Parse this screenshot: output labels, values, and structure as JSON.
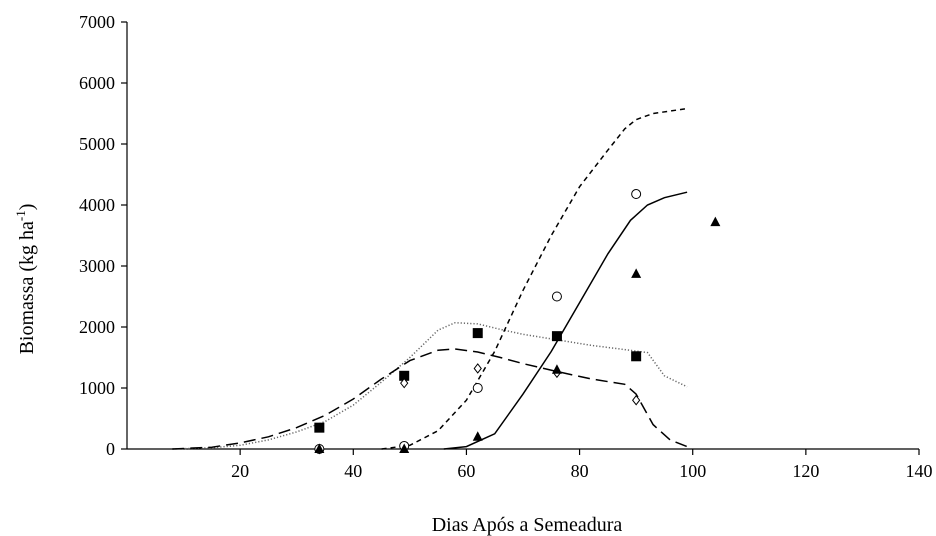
{
  "chart_data": {
    "type": "scatter",
    "title": "",
    "xlabel": "Dias Após a Semeadura",
    "ylabel_main": "Biomassa (kg ha",
    "ylabel_sup": "-1",
    "ylabel_tail": ")",
    "xlim": [
      0,
      140
    ],
    "ylim": [
      0,
      7000
    ],
    "x_ticks": [
      "20",
      "40",
      "60",
      "80",
      "100",
      "120",
      "140"
    ],
    "y_ticks": [
      "0",
      "1000",
      "2000",
      "3000",
      "4000",
      "5000",
      "6000",
      "7000"
    ],
    "grid": false,
    "legend": "none",
    "markers": [
      {
        "marker": "square-filled",
        "points": [
          [
            34,
            350
          ],
          [
            49,
            1200
          ],
          [
            62,
            1900
          ],
          [
            76,
            1850
          ],
          [
            90,
            1520
          ]
        ]
      },
      {
        "marker": "diamond-open",
        "points": [
          [
            34,
            0
          ],
          [
            49,
            1080
          ],
          [
            62,
            1320
          ],
          [
            76,
            1250
          ],
          [
            90,
            800
          ]
        ]
      },
      {
        "marker": "circle-open",
        "points": [
          [
            34,
            0
          ],
          [
            49,
            50
          ],
          [
            62,
            1000
          ],
          [
            76,
            2500
          ],
          [
            90,
            4180
          ]
        ]
      },
      {
        "marker": "triangle-filled",
        "points": [
          [
            34,
            0
          ],
          [
            49,
            0
          ],
          [
            62,
            200
          ],
          [
            76,
            1300
          ],
          [
            90,
            2870
          ],
          [
            104,
            3720
          ]
        ]
      }
    ],
    "curves": [
      {
        "style": "dotted",
        "points": [
          [
            8,
            0
          ],
          [
            15,
            20
          ],
          [
            20,
            60
          ],
          [
            25,
            150
          ],
          [
            30,
            280
          ],
          [
            35,
            450
          ],
          [
            40,
            720
          ],
          [
            45,
            1100
          ],
          [
            50,
            1500
          ],
          [
            55,
            1950
          ],
          [
            58,
            2070
          ],
          [
            62,
            2050
          ],
          [
            66,
            1960
          ],
          [
            70,
            1880
          ],
          [
            76,
            1790
          ],
          [
            82,
            1700
          ],
          [
            88,
            1630
          ],
          [
            92,
            1580
          ],
          [
            95,
            1200
          ],
          [
            99,
            1020
          ]
        ]
      },
      {
        "style": "long-dash",
        "points": [
          [
            8,
            0
          ],
          [
            15,
            30
          ],
          [
            20,
            100
          ],
          [
            25,
            200
          ],
          [
            30,
            350
          ],
          [
            35,
            550
          ],
          [
            40,
            820
          ],
          [
            45,
            1150
          ],
          [
            50,
            1450
          ],
          [
            55,
            1620
          ],
          [
            58,
            1640
          ],
          [
            62,
            1590
          ],
          [
            66,
            1500
          ],
          [
            70,
            1400
          ],
          [
            76,
            1270
          ],
          [
            82,
            1150
          ],
          [
            88,
            1060
          ],
          [
            90,
            900
          ],
          [
            93,
            400
          ],
          [
            96,
            150
          ],
          [
            99,
            40
          ]
        ]
      },
      {
        "style": "short-dash",
        "points": [
          [
            45,
            0
          ],
          [
            50,
            60
          ],
          [
            55,
            300
          ],
          [
            60,
            800
          ],
          [
            65,
            1600
          ],
          [
            70,
            2600
          ],
          [
            75,
            3500
          ],
          [
            80,
            4300
          ],
          [
            85,
            4900
          ],
          [
            88,
            5250
          ],
          [
            90,
            5400
          ],
          [
            93,
            5500
          ],
          [
            99,
            5580
          ]
        ]
      },
      {
        "style": "solid",
        "points": [
          [
            56,
            0
          ],
          [
            60,
            40
          ],
          [
            65,
            250
          ],
          [
            70,
            900
          ],
          [
            75,
            1600
          ],
          [
            80,
            2400
          ],
          [
            85,
            3200
          ],
          [
            89,
            3750
          ],
          [
            92,
            4000
          ],
          [
            95,
            4120
          ],
          [
            99,
            4210
          ]
        ]
      }
    ]
  }
}
